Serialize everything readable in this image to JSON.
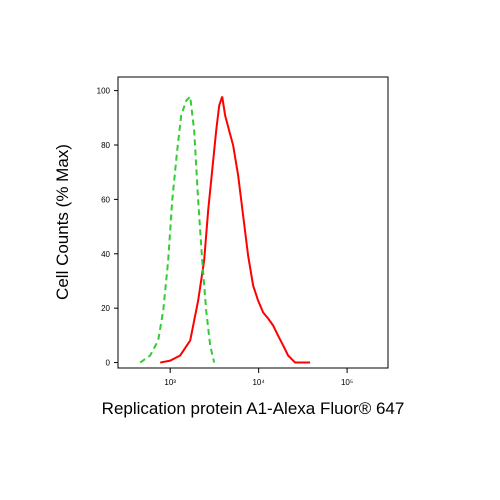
{
  "chart_data": {
    "type": "line",
    "xlabel": "Replication protein A1-Alexa Fluor® 647",
    "ylabel": "Cell Counts (% Max)",
    "xscale": "log",
    "xlim": [
      257,
      290000
    ],
    "ylim": [
      -2,
      105
    ],
    "xticks": [
      {
        "value": 1000,
        "label": "10³"
      },
      {
        "value": 10000,
        "label": "10⁴"
      },
      {
        "value": 100000,
        "label": "10⁵"
      }
    ],
    "yticks": [
      0,
      20,
      40,
      60,
      80,
      100
    ],
    "series": [
      {
        "color": "#ff0000",
        "dash": false,
        "x": [
          771,
          1000,
          1297,
          1683,
          2071,
          2420,
          2686,
          2983,
          3311,
          3580,
          3871,
          4183,
          4643,
          5152,
          5865,
          6680,
          7605,
          8665,
          9860,
          11240,
          12800,
          14590,
          16600,
          18920,
          21530,
          25820,
          38190
        ],
        "values": [
          0,
          0.7,
          2.6,
          8.1,
          22.8,
          37.5,
          55.9,
          70.6,
          85.3,
          94.5,
          97.8,
          90.8,
          85.3,
          79.8,
          68.8,
          54.0,
          39.3,
          28.3,
          22.8,
          18.4,
          16.2,
          13.6,
          9.9,
          6.3,
          2.6,
          0,
          0
        ]
      },
      {
        "color": "#33cc33",
        "dash": true,
        "x": [
          458,
          594,
          731,
          834,
          949,
          1054,
          1199,
          1331,
          1516,
          1683,
          1867,
          2071,
          2301,
          2553,
          2832,
          3141
        ],
        "values": [
          0,
          2.6,
          8.1,
          19.1,
          37.5,
          59.6,
          77.9,
          90.8,
          96.3,
          97.8,
          85.3,
          59.6,
          37.5,
          19.1,
          6.3,
          0
        ]
      }
    ]
  }
}
